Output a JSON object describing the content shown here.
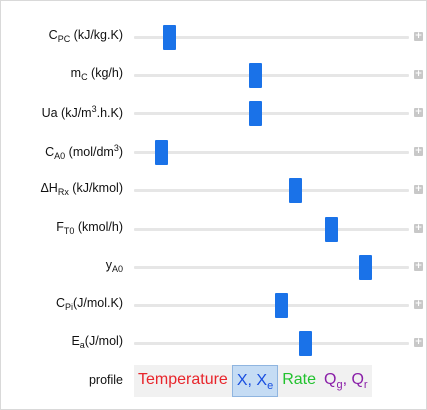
{
  "sliders": [
    {
      "id": "cpc",
      "label": {
        "main": "C",
        "sub": "PC",
        "sup": "",
        "rest": " (kJ/kg.K)"
      },
      "value": 0.11
    },
    {
      "id": "mc",
      "label": {
        "main": "m",
        "sub": "C",
        "sup": "",
        "rest": " (kg/h)"
      },
      "value": 0.44
    },
    {
      "id": "ua",
      "label": {
        "main": "Ua (kJ/m",
        "sub": "",
        "sup": "3",
        "rest": ".h.K)"
      },
      "value": 0.44
    },
    {
      "id": "ca0",
      "label": {
        "main": "C",
        "sub": "A0",
        "sup": "",
        "rest": " (mol/dm",
        "sup2": "3",
        "rest2": ")"
      },
      "value": 0.08
    },
    {
      "id": "dhrx",
      "label": {
        "main": "ΔH",
        "sub": "Rx",
        "sup": "",
        "rest": " (kJ/kmol)"
      },
      "value": 0.59
    },
    {
      "id": "ft0",
      "label": {
        "main": "F",
        "sub": "T0",
        "sup": "",
        "rest": " (kmol/h)"
      },
      "value": 0.73
    },
    {
      "id": "ya0",
      "label": {
        "main": "y",
        "sub": "A0",
        "sup": "",
        "rest": ""
      },
      "value": 0.86
    },
    {
      "id": "cpi",
      "label": {
        "main": "C",
        "sub": "Pi",
        "sup": "",
        "rest": "(J/mol.K)"
      },
      "value": 0.54
    },
    {
      "id": "ea",
      "label": {
        "main": "E",
        "sub": "a",
        "sup": "",
        "rest": "(J/mol)"
      },
      "value": 0.63
    }
  ],
  "plus_glyph": "+",
  "profile": {
    "label": "profile",
    "tabs": [
      {
        "id": "temperature",
        "text": "Temperature",
        "color": "#e8252b",
        "active": false
      },
      {
        "id": "x",
        "text": "X, X",
        "sub": "e",
        "color": "#1a4fe0",
        "active": true
      },
      {
        "id": "rate",
        "text": "Rate",
        "color": "#22c22e",
        "active": false
      },
      {
        "id": "q",
        "text": "Q",
        "sub": "g",
        "text2": ", Q",
        "sub2": "r",
        "color": "#8a1fa8",
        "active": false
      }
    ]
  }
}
